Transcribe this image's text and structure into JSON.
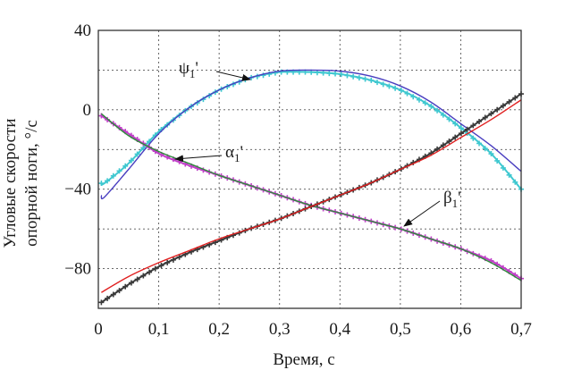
{
  "chart_data": {
    "type": "line",
    "title": "",
    "xlabel": "Время, с",
    "ylabel_lines": [
      "Угловые скорости",
      "опорной ноги, °/с"
    ],
    "xlim": [
      0,
      0.7
    ],
    "ylim": [
      -100,
      40
    ],
    "x_ticks": [
      0,
      0.1,
      0.2,
      0.3,
      0.4,
      0.5,
      0.6,
      0.7
    ],
    "x_tick_labels": [
      "0",
      "0,1",
      "0,2",
      "0,3",
      "0,4",
      "0,5",
      "0,6",
      "0,7"
    ],
    "y_ticks": [
      40,
      0,
      -40,
      -80
    ],
    "y_tick_labels": [
      "40",
      "0",
      "−40",
      "−80"
    ],
    "grid": true,
    "grid_style": "dotted",
    "series": [
      {
        "name": "ψ1'",
        "annotation": {
          "main": "ψ",
          "sub": "1",
          "prime": "'"
        },
        "model_color": "#4a3fc0",
        "marker_color": "#3fc8d0",
        "x": [
          0.005,
          0.01,
          0.05,
          0.1,
          0.15,
          0.2,
          0.25,
          0.3,
          0.35,
          0.4,
          0.45,
          0.5,
          0.55,
          0.6,
          0.65,
          0.7
        ],
        "values": [
          -43,
          -44,
          -30,
          -12,
          1,
          10,
          16,
          19.5,
          20,
          19.5,
          17,
          12,
          4,
          -7,
          -18,
          -31
        ],
        "marker_values": [
          -37,
          -37,
          -27,
          -11,
          1,
          10,
          16,
          19,
          19,
          18,
          15,
          10,
          2,
          -9,
          -22,
          -40
        ]
      },
      {
        "name": "α1'",
        "annotation": {
          "main": "α",
          "sub": "1",
          "prime": "'"
        },
        "model_color": "#2e8b3a",
        "marker_color": "#c040c8",
        "x": [
          0.005,
          0.05,
          0.1,
          0.15,
          0.2,
          0.25,
          0.3,
          0.35,
          0.4,
          0.45,
          0.5,
          0.55,
          0.6,
          0.65,
          0.7
        ],
        "values": [
          -2,
          -13,
          -21,
          -27,
          -33,
          -38,
          -43,
          -48,
          -52,
          -56,
          -60,
          -65,
          -70,
          -77,
          -86
        ],
        "marker_values": [
          -3,
          -12,
          -22,
          -28,
          -33,
          -38,
          -43,
          -48,
          -52,
          -56,
          -60,
          -65,
          -70,
          -76,
          -85
        ]
      },
      {
        "name": "β1'",
        "annotation": {
          "main": "β",
          "sub": "1",
          "prime": "'"
        },
        "model_color": "#e02020",
        "marker_color": "#3a3a3a",
        "x": [
          0.005,
          0.05,
          0.1,
          0.15,
          0.2,
          0.25,
          0.3,
          0.35,
          0.4,
          0.45,
          0.5,
          0.55,
          0.6,
          0.65,
          0.7
        ],
        "values": [
          -92,
          -84,
          -77,
          -71,
          -65,
          -60,
          -55,
          -49,
          -43,
          -37,
          -30,
          -23,
          -14,
          -5,
          5
        ],
        "marker_values": [
          -97,
          -88,
          -79,
          -72,
          -66,
          -60,
          -55,
          -49,
          -43,
          -37,
          -30,
          -22,
          -12,
          -2,
          8
        ]
      }
    ]
  }
}
